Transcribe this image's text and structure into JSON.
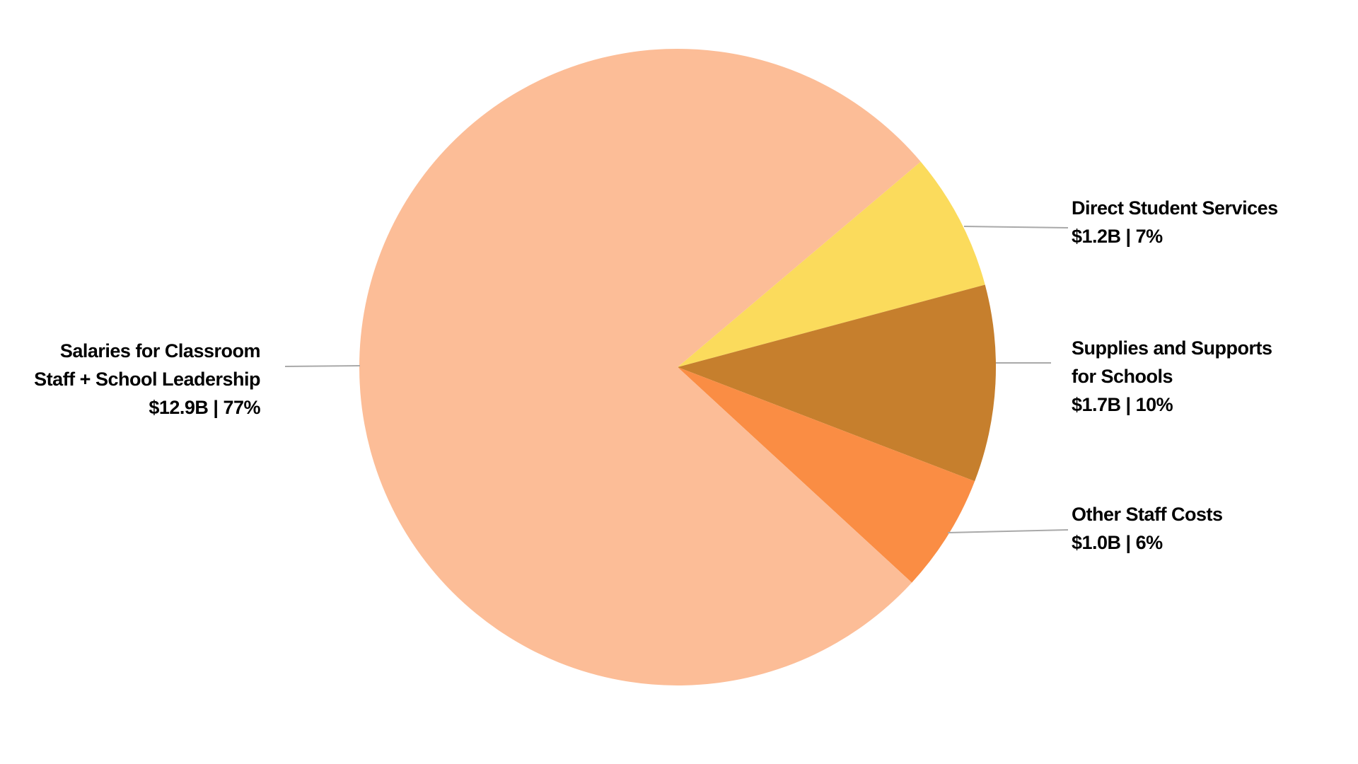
{
  "background_color": "#FFFFFF",
  "chart_data": {
    "type": "pie",
    "title": "",
    "legend_position": "none",
    "label_style": "external-labels-with-leader-lines",
    "start_angle_deg_cw_from_top": 49.8,
    "total_percent": 100,
    "slices": [
      {
        "name": "Direct Student Services",
        "amount_text": "$1.2B",
        "value_billions": 1.2,
        "percent": 7,
        "color": "#FBDB5C",
        "label_lines": [
          "Direct Student Services",
          "$1.2B | 7%"
        ]
      },
      {
        "name": "Supplies and Supports for Schools",
        "amount_text": "$1.7B",
        "value_billions": 1.7,
        "percent": 10,
        "color": "#C67F2D",
        "label_lines": [
          "Supplies and Supports",
          "for Schools",
          "$1.7B | 10%"
        ]
      },
      {
        "name": "Other Staff Costs",
        "amount_text": "$1.0B",
        "value_billions": 1.0,
        "percent": 6,
        "color": "#FA8D44",
        "label_lines": [
          "Other Staff Costs",
          "$1.0B | 6%"
        ]
      },
      {
        "name": "Salaries for Classroom Staff + School Leadership",
        "amount_text": "$12.9B",
        "value_billions": 12.9,
        "percent": 77,
        "color": "#FCBD97",
        "label_lines": [
          "Salaries for Classroom",
          "Staff + School Leadership",
          "$12.9B | 77%"
        ]
      }
    ]
  },
  "colors": {
    "background": "#FFFFFF",
    "leader_line": "#A9A9A9",
    "label_text": "#000000"
  }
}
